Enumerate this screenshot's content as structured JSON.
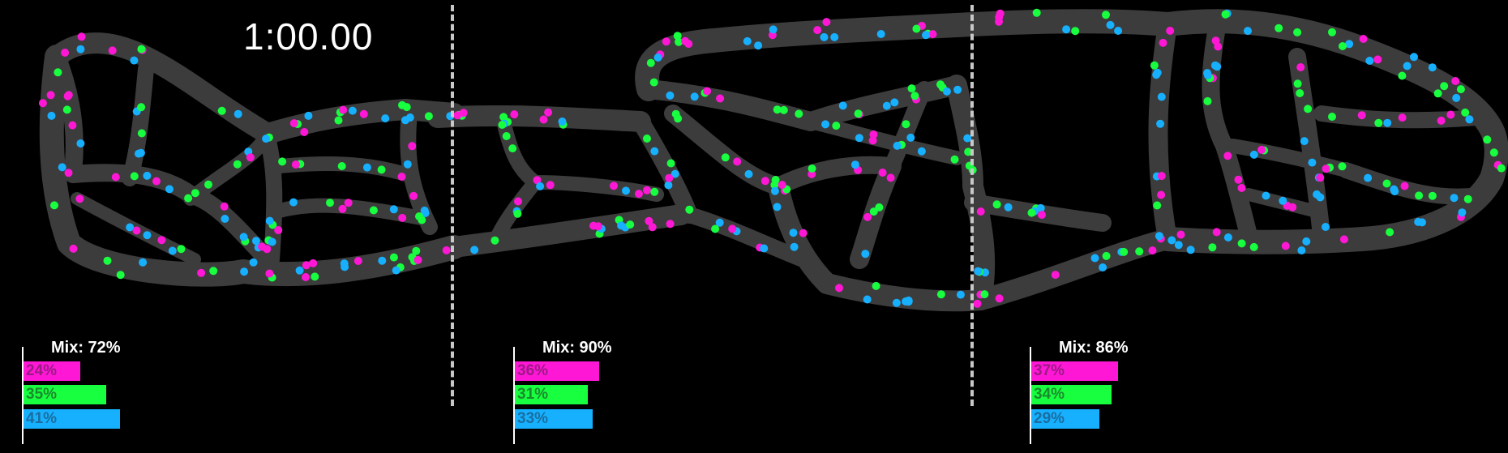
{
  "timer": "1:00.00",
  "colors": {
    "background": "#000000",
    "channel": "#3d3c3d",
    "magenta": "#ff17d6",
    "green": "#17ff3f",
    "blue": "#16b0ff",
    "divider": "#c8c8c8",
    "label_magenta": "#9b1a85",
    "label_green": "#1a8a2c",
    "label_blue": "#1a6ea0"
  },
  "panels": [
    {
      "mix": "Mix: 72%",
      "magenta": 0.24,
      "green": 0.35,
      "blue": 0.41,
      "magenta_label": "24%",
      "green_label": "35%",
      "blue_label": "41%"
    },
    {
      "mix": "Mix: 90%",
      "magenta": 0.36,
      "green": 0.31,
      "blue": 0.33,
      "magenta_label": "36%",
      "green_label": "31%",
      "blue_label": "33%"
    },
    {
      "mix": "Mix: 86%",
      "magenta": 0.37,
      "green": 0.34,
      "blue": 0.29,
      "magenta_label": "37%",
      "green_label": "34%",
      "blue_label": "29%"
    }
  ]
}
